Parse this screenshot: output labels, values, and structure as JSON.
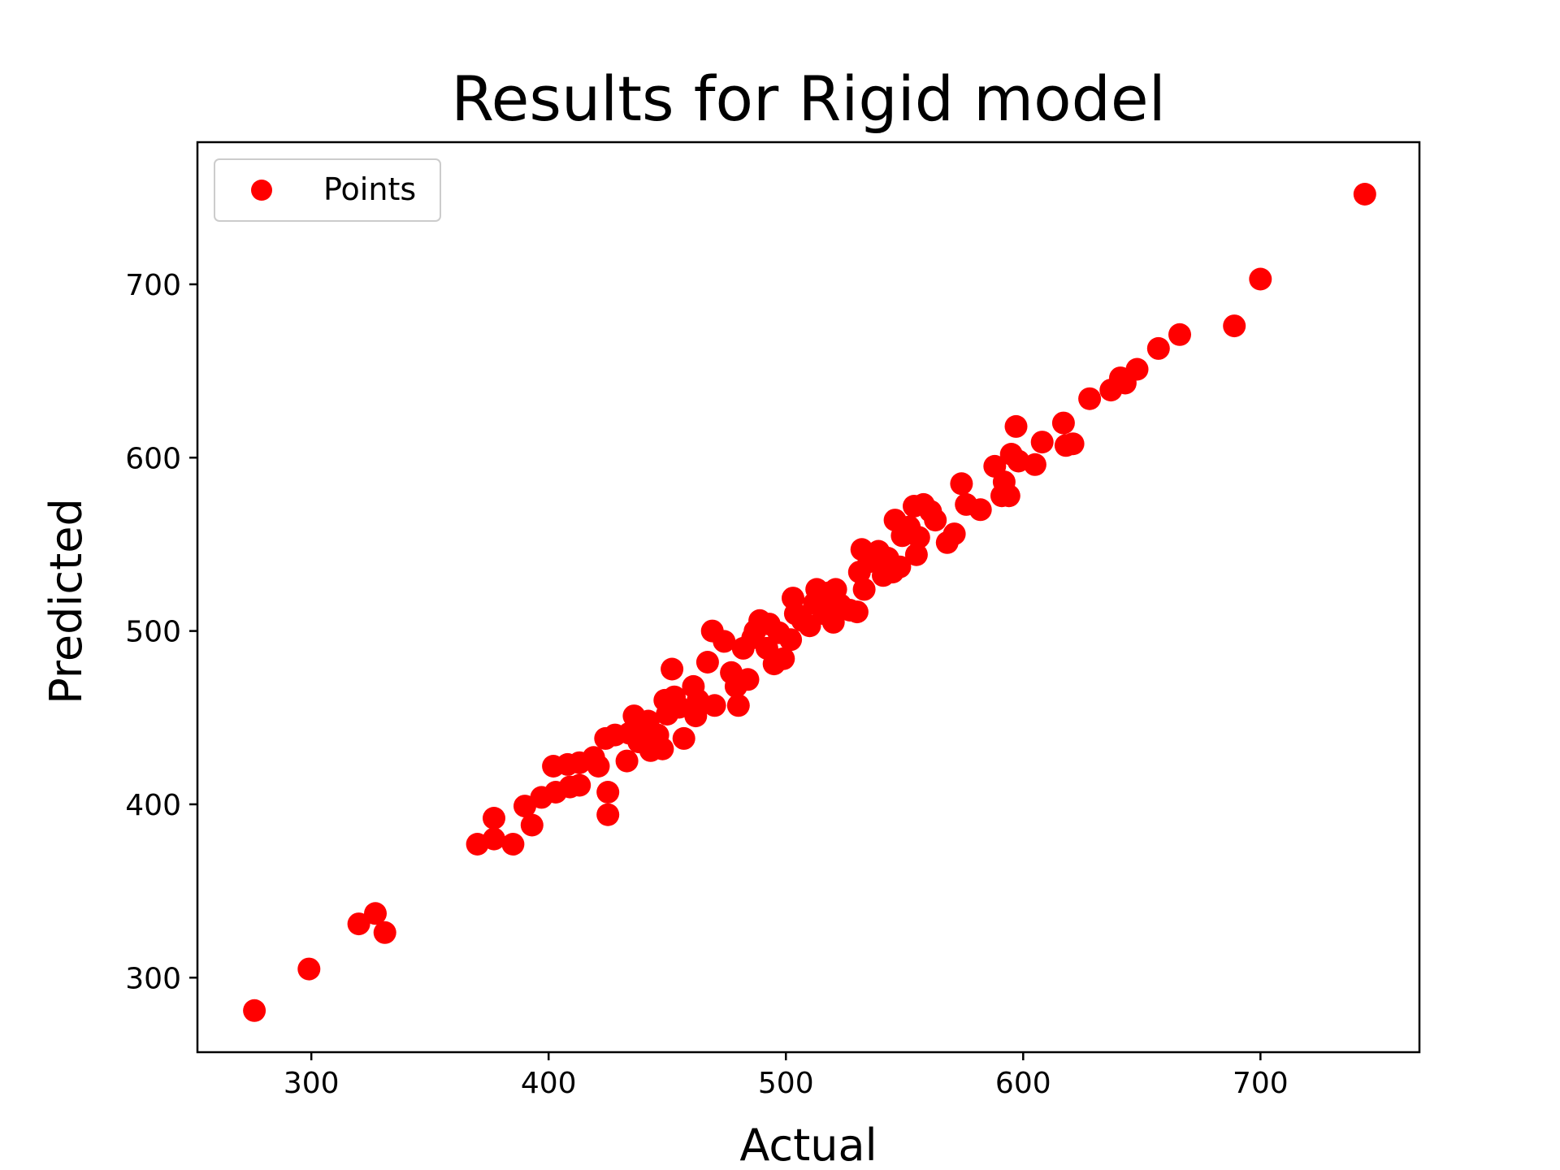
{
  "chart_data": {
    "type": "scatter",
    "title": "Results for Rigid model",
    "xlabel": "Actual",
    "ylabel": "Predicted",
    "xlim": [
      252,
      767
    ],
    "ylim": [
      257,
      782
    ],
    "xticks": [
      300,
      400,
      500,
      600,
      700
    ],
    "yticks": [
      300,
      400,
      500,
      600,
      700
    ],
    "grid": false,
    "legend_position": "top-left",
    "series": [
      {
        "name": "Points",
        "color": "#ff0000",
        "points": [
          [
            276,
            281
          ],
          [
            299,
            305
          ],
          [
            320,
            331
          ],
          [
            327,
            337
          ],
          [
            331,
            326
          ],
          [
            370,
            377
          ],
          [
            377,
            392
          ],
          [
            377,
            380
          ],
          [
            385,
            377
          ],
          [
            390,
            399
          ],
          [
            393,
            388
          ],
          [
            397,
            404
          ],
          [
            402,
            422
          ],
          [
            403,
            407
          ],
          [
            408,
            423
          ],
          [
            409,
            410
          ],
          [
            413,
            424
          ],
          [
            413,
            411
          ],
          [
            419,
            427
          ],
          [
            421,
            422
          ],
          [
            424,
            438
          ],
          [
            425,
            407
          ],
          [
            425,
            394
          ],
          [
            428,
            440
          ],
          [
            433,
            425
          ],
          [
            434,
            441
          ],
          [
            436,
            451
          ],
          [
            438,
            436
          ],
          [
            440,
            445
          ],
          [
            442,
            448
          ],
          [
            443,
            431
          ],
          [
            446,
            440
          ],
          [
            448,
            432
          ],
          [
            449,
            460
          ],
          [
            450,
            452
          ],
          [
            452,
            478
          ],
          [
            453,
            462
          ],
          [
            455,
            456
          ],
          [
            457,
            438
          ],
          [
            461,
            468
          ],
          [
            462,
            451
          ],
          [
            463,
            460
          ],
          [
            467,
            482
          ],
          [
            469,
            500
          ],
          [
            470,
            457
          ],
          [
            474,
            494
          ],
          [
            477,
            476
          ],
          [
            479,
            468
          ],
          [
            480,
            457
          ],
          [
            482,
            490
          ],
          [
            484,
            472
          ],
          [
            486,
            496
          ],
          [
            487,
            500
          ],
          [
            489,
            506
          ],
          [
            492,
            490
          ],
          [
            493,
            504
          ],
          [
            495,
            481
          ],
          [
            497,
            499
          ],
          [
            499,
            484
          ],
          [
            502,
            495
          ],
          [
            503,
            519
          ],
          [
            504,
            510
          ],
          [
            507,
            506
          ],
          [
            510,
            503
          ],
          [
            512,
            516
          ],
          [
            513,
            524
          ],
          [
            516,
            510
          ],
          [
            518,
            522
          ],
          [
            520,
            505
          ],
          [
            521,
            524
          ],
          [
            523,
            515
          ],
          [
            527,
            512
          ],
          [
            530,
            511
          ],
          [
            531,
            534
          ],
          [
            532,
            547
          ],
          [
            533,
            524
          ],
          [
            535,
            540
          ],
          [
            537,
            543
          ],
          [
            539,
            546
          ],
          [
            541,
            532
          ],
          [
            543,
            542
          ],
          [
            545,
            534
          ],
          [
            546,
            564
          ],
          [
            548,
            537
          ],
          [
            549,
            555
          ],
          [
            552,
            560
          ],
          [
            554,
            572
          ],
          [
            555,
            544
          ],
          [
            556,
            554
          ],
          [
            558,
            573
          ],
          [
            561,
            569
          ],
          [
            563,
            564
          ],
          [
            568,
            551
          ],
          [
            571,
            556
          ],
          [
            574,
            585
          ],
          [
            576,
            573
          ],
          [
            582,
            570
          ],
          [
            588,
            595
          ],
          [
            591,
            578
          ],
          [
            592,
            586
          ],
          [
            594,
            578
          ],
          [
            595,
            602
          ],
          [
            597,
            618
          ],
          [
            598,
            598
          ],
          [
            605,
            596
          ],
          [
            608,
            609
          ],
          [
            617,
            620
          ],
          [
            618,
            607
          ],
          [
            621,
            608
          ],
          [
            628,
            634
          ],
          [
            637,
            639
          ],
          [
            641,
            646
          ],
          [
            643,
            643
          ],
          [
            648,
            651
          ],
          [
            657,
            663
          ],
          [
            666,
            671
          ],
          [
            689,
            676
          ],
          [
            700,
            703
          ],
          [
            744,
            752
          ]
        ]
      }
    ]
  }
}
